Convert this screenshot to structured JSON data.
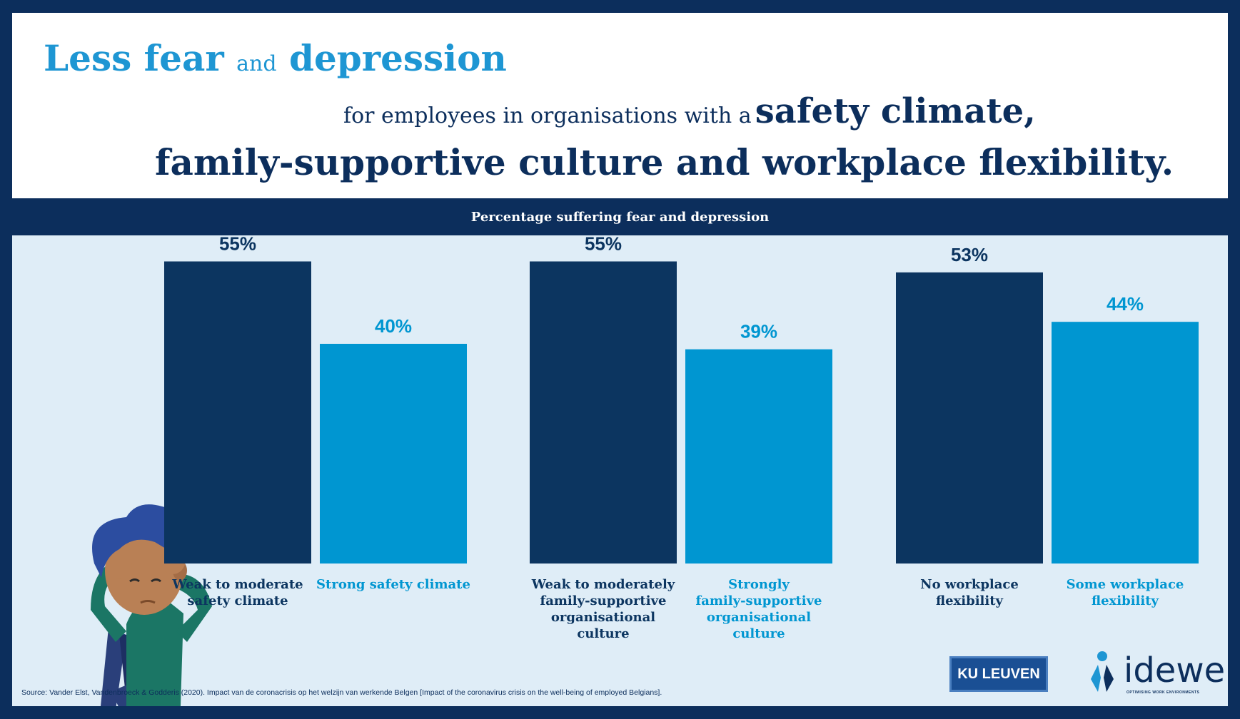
{
  "header": {
    "title_part1": "Less fear",
    "title_and": "and",
    "title_part2": "depression",
    "line2_lead": "for employees in organisations with a",
    "line2_bold": "safety climate,",
    "line3": "family-supportive culture and workplace flexibility."
  },
  "subtitle": "Percentage suffering fear and depression",
  "colors": {
    "dark": "#0c3560",
    "light": "#0096d1",
    "background": "#dfedf7"
  },
  "chart_data": {
    "type": "bar",
    "title": "Percentage suffering fear and depression",
    "ylim": [
      0,
      60
    ],
    "unit": "%",
    "groups": [
      {
        "bars": [
          {
            "label": [
              "Weak to moderate",
              "safety climate"
            ],
            "value": 55,
            "display": "55%",
            "color": "dark"
          },
          {
            "label": [
              "Strong safety climate"
            ],
            "value": 40,
            "display": "40%",
            "color": "light"
          }
        ]
      },
      {
        "bars": [
          {
            "label": [
              "Weak to moderately",
              "family-supportive",
              "organisational",
              "culture"
            ],
            "value": 55,
            "display": "55%",
            "color": "dark"
          },
          {
            "label": [
              "Strongly",
              "family-supportive",
              "organisational",
              "culture"
            ],
            "value": 39,
            "display": "39%",
            "color": "light"
          }
        ]
      },
      {
        "bars": [
          {
            "label": [
              "No workplace",
              "flexibility"
            ],
            "value": 53,
            "display": "53%",
            "color": "dark"
          },
          {
            "label": [
              "Some workplace",
              "flexibility"
            ],
            "value": 44,
            "display": "44%",
            "color": "light"
          }
        ]
      }
    ]
  },
  "source": "Source: Vander Elst, Vandenbroeck & Godderis (2020). Impact van de coronacrisis op het welzijn van werkende Belgen [Impact of the coronavirus crisis on the well-being of employed Belgians].",
  "logos": {
    "ku_leuven": "KU LEUVEN",
    "idewe": "idewe",
    "idewe_tagline": "OPTIMISING WORK ENVIRONMENTS"
  },
  "icons": {
    "illustration": "stressed-person-illustration"
  }
}
